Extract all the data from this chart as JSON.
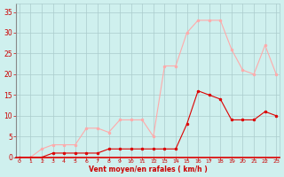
{
  "hours": [
    0,
    1,
    2,
    3,
    4,
    5,
    6,
    7,
    8,
    9,
    10,
    11,
    12,
    13,
    14,
    15,
    16,
    17,
    18,
    19,
    20,
    21,
    22,
    23
  ],
  "wind_avg": [
    0,
    0,
    0,
    1,
    1,
    1,
    1,
    1,
    2,
    2,
    2,
    2,
    2,
    2,
    2,
    8,
    16,
    15,
    14,
    9,
    9,
    9,
    11,
    10
  ],
  "wind_gust": [
    0,
    0,
    2,
    3,
    3,
    3,
    7,
    7,
    6,
    9,
    9,
    9,
    5,
    22,
    22,
    30,
    33,
    33,
    33,
    26,
    21,
    20,
    27,
    20
  ],
  "avg_color": "#dd0000",
  "gust_color": "#ffaaaa",
  "bg_color": "#cff0ee",
  "grid_color": "#aacccc",
  "xlabel": "Vent moyen/en rafales ( km/h )",
  "xlabel_color": "#cc0000",
  "tick_color": "#cc0000",
  "ylim": [
    0,
    37
  ],
  "yticks": [
    0,
    5,
    10,
    15,
    20,
    25,
    30,
    35
  ],
  "xlim": [
    -0.3,
    23.3
  ]
}
